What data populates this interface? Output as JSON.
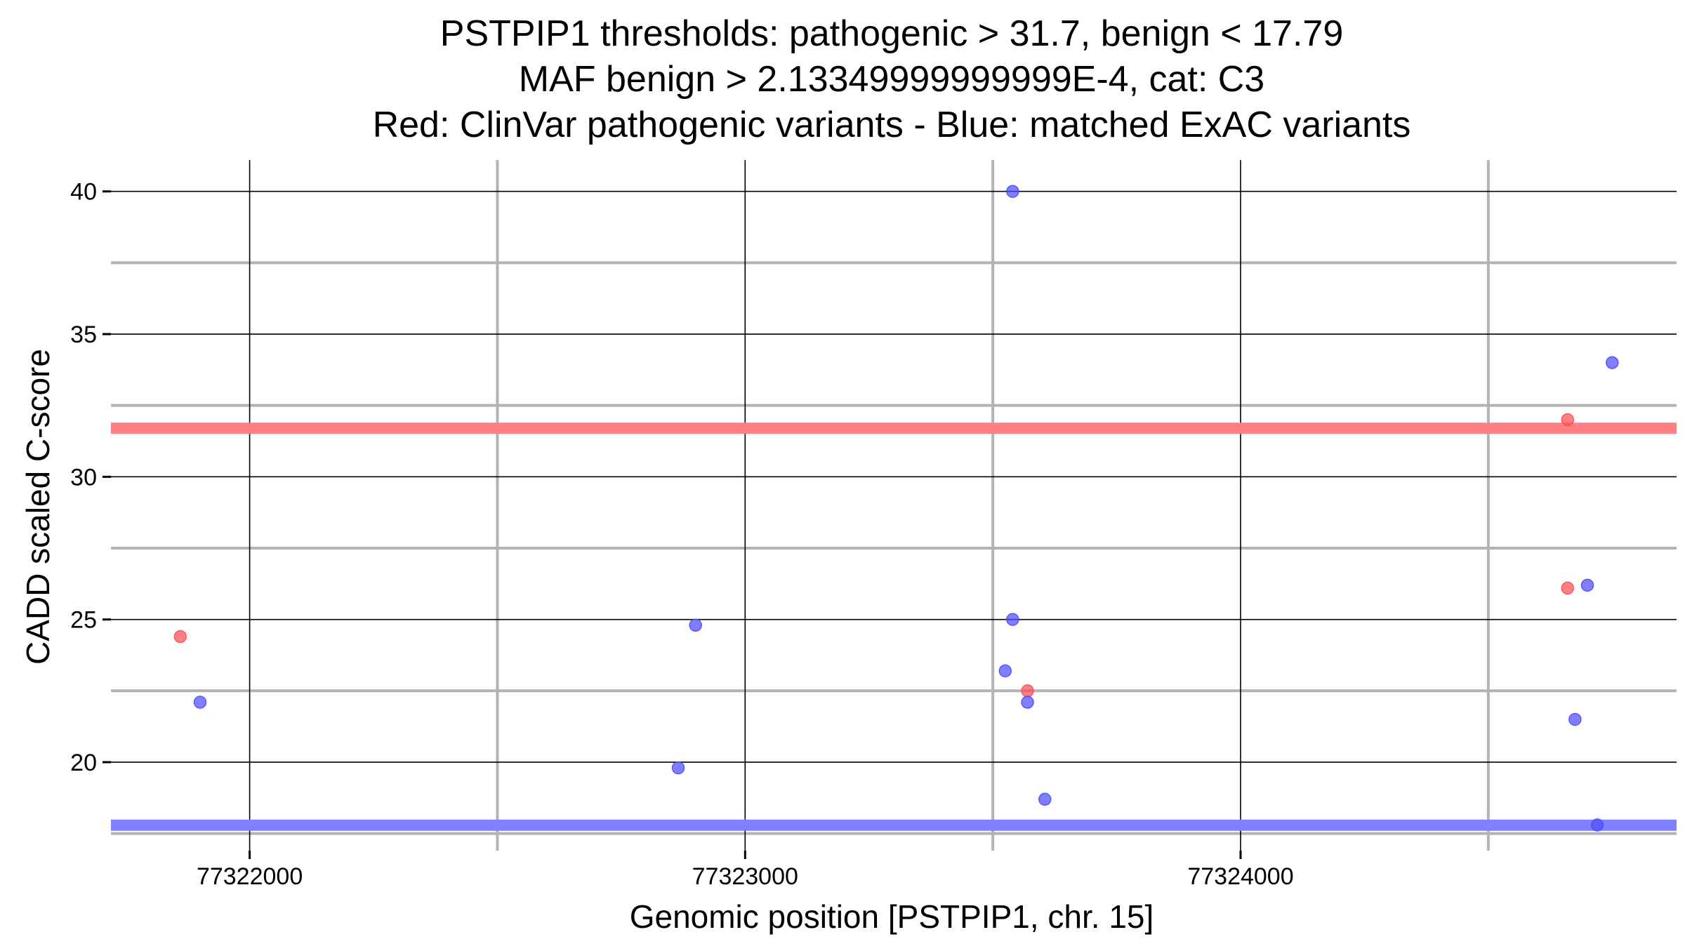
{
  "chart_data": {
    "type": "scatter",
    "title_lines": [
      "PSTPIP1 thresholds: pathogenic > 31.7, benign < 17.79",
      "MAF benign > 2.13349999999999E-4, cat: C3",
      "Red: ClinVar pathogenic variants - Blue: matched ExAC variants"
    ],
    "xlabel": "Genomic position [PSTPIP1, chr. 15]",
    "ylabel": "CADD scaled C-score",
    "xlim": [
      77321720,
      77324880
    ],
    "ylim": [
      16.9,
      41.1
    ],
    "x_ticks": [
      77322000,
      77323000,
      77324000
    ],
    "x_tick_labels": [
      "77322000",
      "77323000",
      "77324000"
    ],
    "x_minor_grid": [
      77322500,
      77323500,
      77324500
    ],
    "y_ticks": [
      20,
      25,
      30,
      35,
      40
    ],
    "y_tick_labels": [
      "20",
      "25",
      "30",
      "35",
      "40"
    ],
    "y_minor_grid": [
      17.5,
      22.5,
      27.5,
      32.5,
      37.5
    ],
    "thresholds": {
      "pathogenic": 31.7,
      "benign": 17.79,
      "pathogenic_color": "#ff7f84",
      "benign_color": "#8080ff"
    },
    "series": [
      {
        "name": "ClinVar pathogenic",
        "color": "#ff4d55",
        "points": [
          {
            "x": 77321860,
            "y": 24.4
          },
          {
            "x": 77323570,
            "y": 22.5
          },
          {
            "x": 77324660,
            "y": 32.0
          },
          {
            "x": 77324660,
            "y": 26.1
          }
        ]
      },
      {
        "name": "Matched ExAC",
        "color": "#4d4dff",
        "points": [
          {
            "x": 77321900,
            "y": 22.1
          },
          {
            "x": 77322900,
            "y": 24.8
          },
          {
            "x": 77322865,
            "y": 19.8
          },
          {
            "x": 77323540,
            "y": 40.0
          },
          {
            "x": 77323540,
            "y": 25.0
          },
          {
            "x": 77323525,
            "y": 23.2
          },
          {
            "x": 77323570,
            "y": 22.1
          },
          {
            "x": 77323605,
            "y": 18.7
          },
          {
            "x": 77324700,
            "y": 26.2
          },
          {
            "x": 77324675,
            "y": 21.5
          },
          {
            "x": 77324750,
            "y": 34.0
          },
          {
            "x": 77324720,
            "y": 17.8
          }
        ]
      }
    ]
  }
}
